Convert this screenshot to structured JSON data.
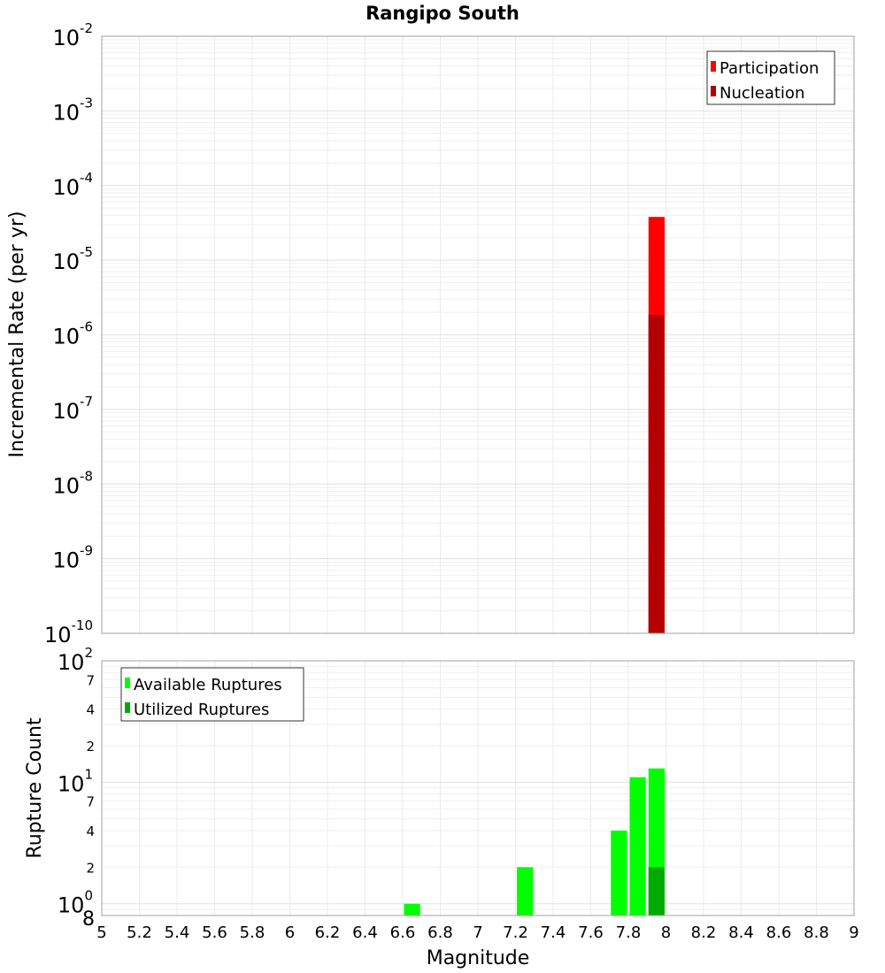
{
  "chart_data": [
    {
      "type": "bar",
      "title": "Rangipo South",
      "xlabel": "",
      "ylabel": "Incremental Rate (per yr)",
      "yscale": "log",
      "ylim": [
        1e-10,
        0.01
      ],
      "xlim": [
        5,
        9
      ],
      "grid": true,
      "y_ticks": [
        {
          "base": "10",
          "exp": "-10",
          "v": -10
        },
        {
          "base": "10",
          "exp": "-9",
          "v": -9
        },
        {
          "base": "10",
          "exp": "-8",
          "v": -8
        },
        {
          "base": "10",
          "exp": "-7",
          "v": -7
        },
        {
          "base": "10",
          "exp": "-6",
          "v": -6
        },
        {
          "base": "10",
          "exp": "-5",
          "v": -5
        },
        {
          "base": "10",
          "exp": "-4",
          "v": -4
        },
        {
          "base": "10",
          "exp": "-3",
          "v": -3
        },
        {
          "base": "10",
          "exp": "-2",
          "v": -2
        }
      ],
      "legend_position": "top-right",
      "bin_width": 0.1,
      "series": [
        {
          "name": "Participation",
          "color": "#ff0000",
          "x": [
            7.95
          ],
          "values": [
            3.8e-05
          ]
        },
        {
          "name": "Nucleation",
          "color": "#b40000",
          "x": [
            7.95
          ],
          "values": [
            1.85e-06
          ]
        }
      ]
    },
    {
      "type": "bar",
      "title": "",
      "xlabel": "Magnitude",
      "ylabel": "Rupture Count",
      "yscale": "log",
      "ylim": [
        0.8,
        100
      ],
      "xlim": [
        5,
        9
      ],
      "grid": true,
      "y_major_ticks": [
        {
          "base": "10",
          "exp": "0",
          "v": 1
        },
        {
          "base": "10",
          "exp": "1",
          "v": 10
        },
        {
          "base": "10",
          "exp": "2",
          "v": 100
        }
      ],
      "y_minor_ticks": [
        {
          "label": "8",
          "v": 0.8
        },
        {
          "label": "2",
          "v": 2
        },
        {
          "label": "4",
          "v": 4
        },
        {
          "label": "7",
          "v": 7
        },
        {
          "label": "2",
          "v": 20
        },
        {
          "label": "4",
          "v": 40
        },
        {
          "label": "7",
          "v": 70
        }
      ],
      "x_ticks": [
        "5",
        "5.2",
        "5.4",
        "5.6",
        "5.8",
        "6",
        "6.2",
        "6.4",
        "6.6",
        "6.8",
        "7",
        "7.2",
        "7.4",
        "7.6",
        "7.8",
        "8",
        "8.2",
        "8.4",
        "8.6",
        "8.8",
        "9"
      ],
      "legend_position": "top-left",
      "bin_width": 0.1,
      "series": [
        {
          "name": "Available Ruptures",
          "color": "#00ff00",
          "x": [
            6.65,
            7.25,
            7.75,
            7.85,
            7.95
          ],
          "values": [
            1,
            2,
            4,
            11,
            13
          ]
        },
        {
          "name": "Utilized Ruptures",
          "color": "#00aa00",
          "x": [
            7.95
          ],
          "values": [
            2
          ]
        }
      ]
    }
  ]
}
